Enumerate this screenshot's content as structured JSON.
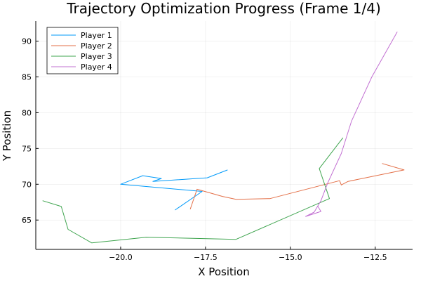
{
  "chart_data": {
    "type": "line",
    "title": "Trajectory Optimization Progress (Frame 1/4)",
    "xlabel": "X Position",
    "ylabel": "Y Position",
    "xlim": [
      -22.5,
      -11.4
    ],
    "ylim": [
      60.9,
      92.8
    ],
    "xticks": [
      -20.0,
      -17.5,
      -15.0,
      -12.5
    ],
    "xtick_labels": [
      "−20.0",
      "−17.5",
      "−15.0",
      "−12.5"
    ],
    "yticks": [
      65,
      70,
      75,
      80,
      85,
      90
    ],
    "ytick_labels": [
      "65",
      "70",
      "75",
      "80",
      "85",
      "90"
    ],
    "grid": true,
    "legend_position": "top-left",
    "series": [
      {
        "name": "Player 1",
        "color": "#009AFA",
        "points": [
          [
            -16.85,
            72.0
          ],
          [
            -17.45,
            70.9
          ],
          [
            -19.05,
            70.4
          ],
          [
            -18.8,
            70.8
          ],
          [
            -19.35,
            71.2
          ],
          [
            -20.0,
            70.0
          ],
          [
            -17.6,
            69.0
          ],
          [
            -18.4,
            66.4
          ]
        ]
      },
      {
        "name": "Player 2",
        "color": "#E36F47",
        "points": [
          [
            -17.95,
            66.5
          ],
          [
            -17.75,
            69.3
          ],
          [
            -17.0,
            68.3
          ],
          [
            -16.6,
            67.9
          ],
          [
            -15.6,
            68.0
          ],
          [
            -13.55,
            70.5
          ],
          [
            -13.5,
            69.9
          ],
          [
            -13.3,
            70.4
          ],
          [
            -11.65,
            72.0
          ],
          [
            -12.3,
            72.9
          ]
        ]
      },
      {
        "name": "Player 3",
        "color": "#3EA44E",
        "points": [
          [
            -13.45,
            76.5
          ],
          [
            -14.15,
            72.2
          ],
          [
            -13.85,
            68.0
          ],
          [
            -16.6,
            62.3
          ],
          [
            -19.25,
            62.6
          ],
          [
            -20.85,
            61.8
          ],
          [
            -21.55,
            63.7
          ],
          [
            -21.75,
            66.9
          ],
          [
            -22.3,
            67.7
          ]
        ]
      },
      {
        "name": "Player 4",
        "color": "#C270D2",
        "points": [
          [
            -11.85,
            91.3
          ],
          [
            -12.6,
            85.0
          ],
          [
            -13.2,
            78.8
          ],
          [
            -13.5,
            74.3
          ],
          [
            -13.9,
            70.2
          ],
          [
            -14.1,
            67.7
          ],
          [
            -14.3,
            66.1
          ],
          [
            -14.55,
            65.5
          ],
          [
            -14.1,
            66.2
          ],
          [
            -14.2,
            67.0
          ]
        ]
      }
    ]
  }
}
